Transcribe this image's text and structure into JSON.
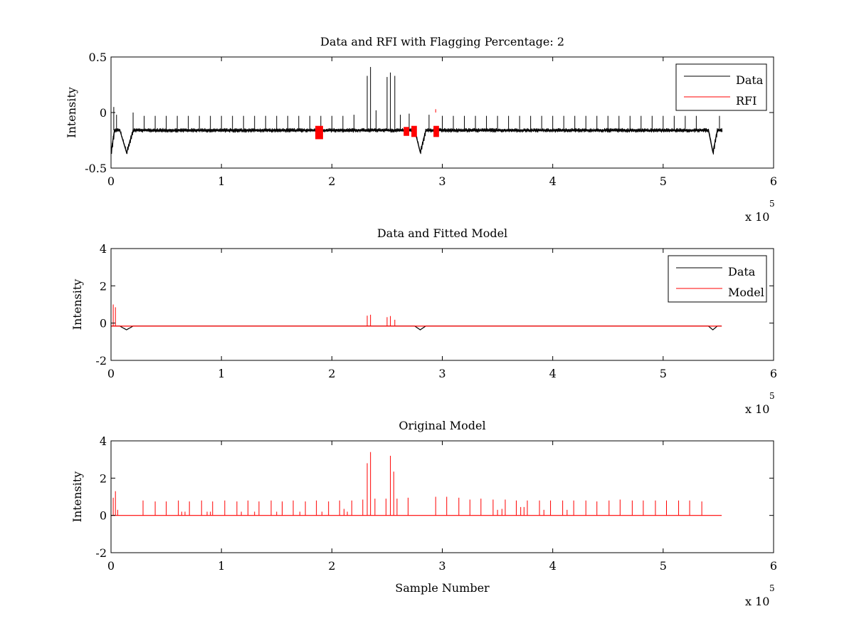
{
  "chart_data": [
    {
      "type": "line",
      "title": "Data and RFI with Flagging Percentage: 2",
      "xlabel": "",
      "ylabel": "Intensity",
      "xlim": [
        0,
        600000
      ],
      "ylim": [
        -0.5,
        0.5
      ],
      "x_ticks": [
        0,
        1,
        2,
        3,
        4,
        5,
        6
      ],
      "y_ticks": [
        -0.5,
        0,
        0.5
      ],
      "x_tick_labels": [
        "0",
        "1",
        "2",
        "3",
        "4",
        "5",
        "6"
      ],
      "y_tick_labels": [
        "-0.5",
        "0",
        "0.5"
      ],
      "x_multiplier": {
        "base": "x 10",
        "exponent": "5"
      },
      "legend": {
        "position": "top-right",
        "entries": [
          "Data",
          "RFI"
        ]
      },
      "series": [
        {
          "name": "Data",
          "color": "#000000",
          "baseline": -0.16,
          "noise": 0.02,
          "end_x": 553000,
          "dips": [
            {
              "x": 0,
              "x_end": 3000,
              "y": -0.36
            },
            {
              "x": 14000,
              "y": -0.36,
              "width": 6000
            },
            {
              "x": 280000,
              "y": -0.36,
              "width": 5000
            },
            {
              "x": 545000,
              "y": -0.36,
              "width": 4000
            }
          ],
          "recoveries": [
            {
              "x": 2500,
              "y": 0.05
            },
            {
              "x": 20000,
              "y": 0.0
            },
            {
              "x": 288000,
              "y": -0.02
            },
            {
              "x": 551000,
              "y": -0.03
            }
          ],
          "spikes": [
            {
              "x": 5000,
              "y": -0.02
            },
            {
              "x": 30000,
              "y": -0.03
            },
            {
              "x": 40000,
              "y": -0.03
            },
            {
              "x": 50000,
              "y": -0.03
            },
            {
              "x": 60000,
              "y": -0.03
            },
            {
              "x": 70000,
              "y": -0.03
            },
            {
              "x": 80000,
              "y": -0.03
            },
            {
              "x": 90000,
              "y": -0.03
            },
            {
              "x": 100000,
              "y": -0.03
            },
            {
              "x": 110000,
              "y": -0.03
            },
            {
              "x": 120000,
              "y": -0.03
            },
            {
              "x": 130000,
              "y": -0.03
            },
            {
              "x": 140000,
              "y": -0.03
            },
            {
              "x": 150000,
              "y": -0.03
            },
            {
              "x": 160000,
              "y": -0.03
            },
            {
              "x": 170000,
              "y": -0.03
            },
            {
              "x": 180000,
              "y": -0.03
            },
            {
              "x": 190000,
              "y": -0.03
            },
            {
              "x": 200000,
              "y": -0.03
            },
            {
              "x": 210000,
              "y": -0.03
            },
            {
              "x": 220000,
              "y": -0.02
            },
            {
              "x": 232000,
              "y": 0.33
            },
            {
              "x": 235000,
              "y": 0.41
            },
            {
              "x": 240000,
              "y": 0.02
            },
            {
              "x": 250000,
              "y": 0.32
            },
            {
              "x": 253000,
              "y": 0.36
            },
            {
              "x": 257000,
              "y": 0.33
            },
            {
              "x": 262000,
              "y": -0.02
            },
            {
              "x": 270000,
              "y": -0.01
            },
            {
              "x": 300000,
              "y": -0.03
            },
            {
              "x": 310000,
              "y": -0.03
            },
            {
              "x": 320000,
              "y": -0.03
            },
            {
              "x": 330000,
              "y": -0.03
            },
            {
              "x": 340000,
              "y": -0.03
            },
            {
              "x": 350000,
              "y": -0.03
            },
            {
              "x": 360000,
              "y": -0.03
            },
            {
              "x": 370000,
              "y": -0.03
            },
            {
              "x": 380000,
              "y": -0.03
            },
            {
              "x": 390000,
              "y": -0.03
            },
            {
              "x": 400000,
              "y": -0.03
            },
            {
              "x": 410000,
              "y": -0.03
            },
            {
              "x": 420000,
              "y": -0.03
            },
            {
              "x": 430000,
              "y": -0.03
            },
            {
              "x": 440000,
              "y": -0.03
            },
            {
              "x": 450000,
              "y": -0.03
            },
            {
              "x": 460000,
              "y": -0.03
            },
            {
              "x": 470000,
              "y": -0.03
            },
            {
              "x": 480000,
              "y": -0.03
            },
            {
              "x": 490000,
              "y": -0.03
            },
            {
              "x": 500000,
              "y": -0.03
            },
            {
              "x": 510000,
              "y": -0.03
            },
            {
              "x": 520000,
              "y": -0.03
            },
            {
              "x": 530000,
              "y": -0.03
            }
          ]
        },
        {
          "name": "RFI",
          "color": "#ff0000",
          "segments": [
            {
              "x_start": 185000,
              "x_end": 192000,
              "y_min": -0.24,
              "y_max": -0.12
            },
            {
              "x_start": 265000,
              "x_end": 270000,
              "y_min": -0.21,
              "y_max": -0.13
            },
            {
              "x_start": 272000,
              "x_end": 277000,
              "y_min": -0.22,
              "y_max": -0.12
            },
            {
              "x_start": 292000,
              "x_end": 297000,
              "y_min": -0.22,
              "y_max": -0.12
            }
          ],
          "spikes": [
            {
              "x": 294000,
              "y": 0.03
            }
          ]
        }
      ]
    },
    {
      "type": "line",
      "title": "Data and Fitted Model",
      "xlabel": "",
      "ylabel": "Intensity",
      "xlim": [
        0,
        600000
      ],
      "ylim": [
        -2,
        4
      ],
      "x_ticks": [
        0,
        1,
        2,
        3,
        4,
        5,
        6
      ],
      "y_ticks": [
        -2,
        0,
        2,
        4
      ],
      "x_tick_labels": [
        "0",
        "1",
        "2",
        "3",
        "4",
        "5",
        "6"
      ],
      "y_tick_labels": [
        "-2",
        "0",
        "2",
        "4"
      ],
      "x_multiplier": {
        "base": "x 10",
        "exponent": "5"
      },
      "legend": {
        "position": "top-right",
        "entries": [
          "Data",
          "Model"
        ]
      },
      "series": [
        {
          "name": "Data",
          "color": "#000000",
          "baseline": -0.16,
          "end_x": 553000,
          "dips": [
            {
              "x": 14000,
              "y": -0.36,
              "width": 6000
            },
            {
              "x": 280000,
              "y": -0.36,
              "width": 5000
            },
            {
              "x": 545000,
              "y": -0.36,
              "width": 4000
            }
          ]
        },
        {
          "name": "Model",
          "color": "#ff0000",
          "baseline": -0.16,
          "end_x": 553000,
          "spikes": [
            {
              "x": 2000,
              "y": 1.0
            },
            {
              "x": 4000,
              "y": 0.85
            },
            {
              "x": 232000,
              "y": 0.4
            },
            {
              "x": 235000,
              "y": 0.45
            },
            {
              "x": 250000,
              "y": 0.32
            },
            {
              "x": 253000,
              "y": 0.38
            },
            {
              "x": 257000,
              "y": 0.18
            }
          ]
        }
      ]
    },
    {
      "type": "line",
      "title": "Original Model",
      "xlabel": "Sample Number",
      "ylabel": "Intensity",
      "xlim": [
        0,
        600000
      ],
      "ylim": [
        -2,
        4
      ],
      "x_ticks": [
        0,
        1,
        2,
        3,
        4,
        5,
        6
      ],
      "y_ticks": [
        -2,
        0,
        2,
        4
      ],
      "x_tick_labels": [
        "0",
        "1",
        "2",
        "3",
        "4",
        "5",
        "6"
      ],
      "y_tick_labels": [
        "-2",
        "0",
        "2",
        "4"
      ],
      "x_multiplier": {
        "base": "x 10",
        "exponent": "5"
      },
      "series": [
        {
          "name": "Model",
          "color": "#ff0000",
          "baseline": 0,
          "end_x": 553000,
          "spikes": [
            {
              "x": 2000,
              "y": 0.95
            },
            {
              "x": 4000,
              "y": 1.3
            },
            {
              "x": 6000,
              "y": 0.3
            },
            {
              "x": 29000,
              "y": 0.8
            },
            {
              "x": 40000,
              "y": 0.75
            },
            {
              "x": 50000,
              "y": 0.75
            },
            {
              "x": 61000,
              "y": 0.8
            },
            {
              "x": 64000,
              "y": 0.2
            },
            {
              "x": 67000,
              "y": 0.2
            },
            {
              "x": 71000,
              "y": 0.75
            },
            {
              "x": 82000,
              "y": 0.8
            },
            {
              "x": 87000,
              "y": 0.2
            },
            {
              "x": 90000,
              "y": 0.2
            },
            {
              "x": 92000,
              "y": 0.75
            },
            {
              "x": 103000,
              "y": 0.8
            },
            {
              "x": 114000,
              "y": 0.75
            },
            {
              "x": 118000,
              "y": 0.2
            },
            {
              "x": 124000,
              "y": 0.8
            },
            {
              "x": 130000,
              "y": 0.2
            },
            {
              "x": 134000,
              "y": 0.75
            },
            {
              "x": 145000,
              "y": 0.8
            },
            {
              "x": 150000,
              "y": 0.2
            },
            {
              "x": 155000,
              "y": 0.75
            },
            {
              "x": 165000,
              "y": 0.8
            },
            {
              "x": 171000,
              "y": 0.2
            },
            {
              "x": 176000,
              "y": 0.75
            },
            {
              "x": 186000,
              "y": 0.8
            },
            {
              "x": 191000,
              "y": 0.2
            },
            {
              "x": 197000,
              "y": 0.75
            },
            {
              "x": 207000,
              "y": 0.8
            },
            {
              "x": 211000,
              "y": 0.35
            },
            {
              "x": 214000,
              "y": 0.2
            },
            {
              "x": 218000,
              "y": 0.8
            },
            {
              "x": 228000,
              "y": 0.85
            },
            {
              "x": 232000,
              "y": 2.8
            },
            {
              "x": 235000,
              "y": 3.4
            },
            {
              "x": 239000,
              "y": 0.9
            },
            {
              "x": 249000,
              "y": 0.9
            },
            {
              "x": 253000,
              "y": 3.2
            },
            {
              "x": 256000,
              "y": 2.35
            },
            {
              "x": 259000,
              "y": 0.9
            },
            {
              "x": 269000,
              "y": 0.95
            },
            {
              "x": 294000,
              "y": 1.0
            },
            {
              "x": 304000,
              "y": 1.0
            },
            {
              "x": 315000,
              "y": 0.95
            },
            {
              "x": 325000,
              "y": 0.85
            },
            {
              "x": 335000,
              "y": 0.9
            },
            {
              "x": 346000,
              "y": 0.85
            },
            {
              "x": 350000,
              "y": 0.3
            },
            {
              "x": 354000,
              "y": 0.35
            },
            {
              "x": 357000,
              "y": 0.85
            },
            {
              "x": 367000,
              "y": 0.8
            },
            {
              "x": 371000,
              "y": 0.45
            },
            {
              "x": 374000,
              "y": 0.45
            },
            {
              "x": 377000,
              "y": 0.8
            },
            {
              "x": 388000,
              "y": 0.8
            },
            {
              "x": 392000,
              "y": 0.3
            },
            {
              "x": 398000,
              "y": 0.8
            },
            {
              "x": 409000,
              "y": 0.8
            },
            {
              "x": 413000,
              "y": 0.3
            },
            {
              "x": 419000,
              "y": 0.8
            },
            {
              "x": 430000,
              "y": 0.8
            },
            {
              "x": 440000,
              "y": 0.75
            },
            {
              "x": 451000,
              "y": 0.8
            },
            {
              "x": 461000,
              "y": 0.85
            },
            {
              "x": 472000,
              "y": 0.8
            },
            {
              "x": 482000,
              "y": 0.8
            },
            {
              "x": 493000,
              "y": 0.8
            },
            {
              "x": 503000,
              "y": 0.8
            },
            {
              "x": 514000,
              "y": 0.8
            },
            {
              "x": 524000,
              "y": 0.8
            },
            {
              "x": 535000,
              "y": 0.75
            }
          ]
        }
      ]
    }
  ]
}
